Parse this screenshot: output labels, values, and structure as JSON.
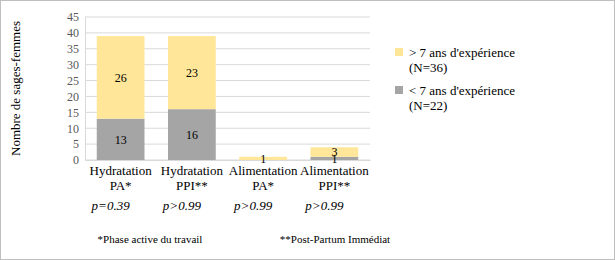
{
  "chart_data": {
    "type": "bar",
    "stacked": true,
    "data_labels": true,
    "grid": true,
    "legend": "right",
    "y_label": "Nombre de sages-femmes",
    "categories": [
      "Hydratation PA*",
      "Hydratation PPI**",
      "Alimentation PA*",
      "Alimentation PPI**"
    ],
    "series": [
      {
        "name": "< 7 ans d'expérience (N=22)",
        "color": "#a5a5a5",
        "values": [
          13,
          16,
          0,
          1
        ]
      },
      {
        "name": "> 7 ans d'expérience (N=36)",
        "color": "#ffe699",
        "values": [
          26,
          23,
          1,
          3
        ]
      }
    ],
    "ylim": [
      0,
      45
    ],
    "yticks": [
      0,
      5,
      10,
      15,
      20,
      25,
      30,
      35,
      40,
      45
    ],
    "annotations": [
      "p=0.39",
      "p>0.99",
      "p>0.99",
      "p>0.99"
    ],
    "footnotes": [
      "*Phase active du travail",
      "**Post-Partum Immédiat"
    ]
  }
}
